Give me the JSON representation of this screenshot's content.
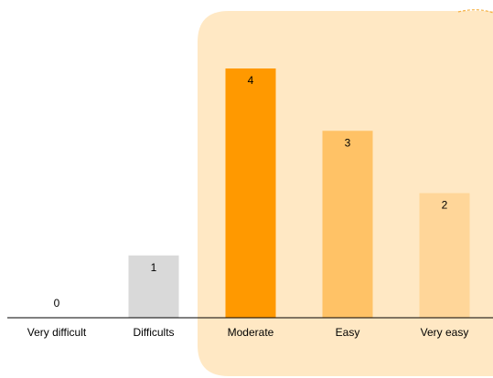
{
  "chart_data": {
    "type": "bar",
    "title": "",
    "xlabel": "",
    "ylabel": "",
    "categories": [
      "Very difficult",
      "Difficults",
      "Moderate",
      "Easy",
      "Very easy"
    ],
    "values": [
      0,
      1,
      4,
      3,
      2
    ],
    "ylim": [
      0,
      4
    ],
    "grid": false,
    "legend": "none",
    "colors": {
      "very_difficult": "#D9D9D9",
      "difficults": "#D9D9D9",
      "moderate": "#FF9900",
      "easy": "#FFC266",
      "very_easy": "#FFD699",
      "highlight_panel": "#FFE8C4",
      "highlight_dash": "#F5B041",
      "axis": "#000000"
    },
    "highlight": {
      "categories": [
        "Moderate",
        "Easy",
        "Very easy"
      ]
    }
  }
}
